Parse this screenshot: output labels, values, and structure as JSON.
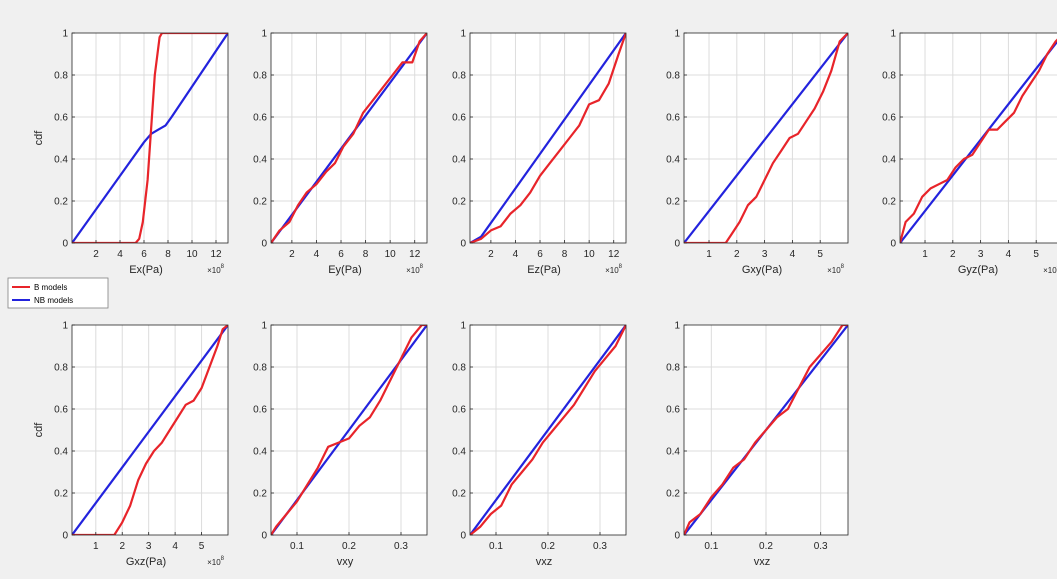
{
  "figure": {
    "background": "#f0f0f0",
    "axes_color": "#262626",
    "grid_color": "#dcdcdc"
  },
  "legend": {
    "placement": "left, between the two rows",
    "entries": [
      {
        "label": "B models",
        "color": "#e8242a"
      },
      {
        "label": "NB models",
        "color": "#2323dd"
      }
    ]
  },
  "chart_data": [
    {
      "type": "line",
      "xlabel": "Ex(Pa)",
      "ylabel": "cdf",
      "exponent": "10",
      "xlim": [
        0,
        13
      ],
      "ylim": [
        0,
        1
      ],
      "xticks": [
        2,
        4,
        6,
        8,
        10,
        12
      ],
      "xticklabels": [
        "2",
        "4",
        "6",
        "8",
        "10",
        "12"
      ],
      "yticks": [
        0,
        0.2,
        0.4,
        0.6,
        0.8,
        1
      ],
      "yticklabels": [
        "0",
        "0.2",
        "0.4",
        "0.6",
        "0.8",
        "1"
      ],
      "series": [
        {
          "name": "B models",
          "color": "#e8242a",
          "x": [
            0,
            5.3,
            5.6,
            5.9,
            6.3,
            6.6,
            6.9,
            7.3,
            7.5,
            8,
            13
          ],
          "y": [
            0,
            0,
            0.02,
            0.1,
            0.3,
            0.55,
            0.8,
            0.98,
            1,
            1,
            1
          ]
        },
        {
          "name": "NB models",
          "color": "#2323dd",
          "x": [
            0,
            6,
            6.6,
            7.2,
            7.8,
            8.3,
            13
          ],
          "y": [
            0,
            0.48,
            0.52,
            0.54,
            0.56,
            0.6,
            1
          ]
        }
      ]
    },
    {
      "type": "line",
      "xlabel": "Ey(Pa)",
      "ylabel": "",
      "exponent": "10",
      "xlim": [
        0.3,
        13
      ],
      "ylim": [
        0,
        1
      ],
      "xticks": [
        2,
        4,
        6,
        8,
        10,
        12
      ],
      "xticklabels": [
        "2",
        "4",
        "6",
        "8",
        "10",
        "12"
      ],
      "yticks": [
        0,
        0.2,
        0.4,
        0.6,
        0.8,
        1
      ],
      "yticklabels": [
        "0",
        "0.2",
        "0.4",
        "0.6",
        "0.8",
        "1"
      ],
      "series": [
        {
          "name": "B models",
          "color": "#e8242a",
          "x": [
            0.3,
            1,
            1.8,
            2.5,
            3.2,
            4,
            4.8,
            5.5,
            6.2,
            7,
            7.8,
            8.6,
            9.4,
            10.2,
            11,
            11.8,
            12.4,
            13
          ],
          "y": [
            0,
            0.06,
            0.1,
            0.18,
            0.24,
            0.28,
            0.34,
            0.38,
            0.46,
            0.52,
            0.62,
            0.68,
            0.74,
            0.8,
            0.86,
            0.86,
            0.96,
            1
          ]
        },
        {
          "name": "NB models",
          "color": "#2323dd",
          "x": [
            0.3,
            13
          ],
          "y": [
            0,
            1
          ]
        }
      ]
    },
    {
      "type": "line",
      "xlabel": "Ez(Pa)",
      "ylabel": "",
      "exponent": "10",
      "xlim": [
        0.3,
        13
      ],
      "ylim": [
        0,
        1
      ],
      "xticks": [
        2,
        4,
        6,
        8,
        10,
        12
      ],
      "xticklabels": [
        "2",
        "4",
        "6",
        "8",
        "10",
        "12"
      ],
      "yticks": [
        0,
        0.2,
        0.4,
        0.6,
        0.8,
        1
      ],
      "yticklabels": [
        "0",
        "0.2",
        "0.4",
        "0.6",
        "0.8",
        "1"
      ],
      "series": [
        {
          "name": "B models",
          "color": "#e8242a",
          "x": [
            0.3,
            1.2,
            2,
            2.8,
            3.6,
            4.4,
            5.2,
            6,
            6.8,
            7.6,
            8.4,
            9.2,
            10,
            10.8,
            11.6,
            12.4,
            13
          ],
          "y": [
            0,
            0.02,
            0.06,
            0.08,
            0.14,
            0.18,
            0.24,
            0.32,
            0.38,
            0.44,
            0.5,
            0.56,
            0.66,
            0.68,
            0.76,
            0.9,
            1
          ]
        },
        {
          "name": "NB models",
          "color": "#2323dd",
          "x": [
            0.3,
            1.2,
            13
          ],
          "y": [
            0,
            0.03,
            1
          ]
        }
      ]
    },
    {
      "type": "line",
      "xlabel": "Gxy(Pa)",
      "ylabel": "",
      "exponent": "10",
      "xlim": [
        0.1,
        6
      ],
      "ylim": [
        0,
        1
      ],
      "xticks": [
        1,
        2,
        3,
        4,
        5
      ],
      "xticklabels": [
        "1",
        "2",
        "3",
        "4",
        "5"
      ],
      "yticks": [
        0,
        0.2,
        0.4,
        0.6,
        0.8,
        1
      ],
      "yticklabels": [
        "0",
        "0.2",
        "0.4",
        "0.6",
        "0.8",
        "1"
      ],
      "series": [
        {
          "name": "B models",
          "color": "#e8242a",
          "x": [
            0.1,
            1.6,
            1.8,
            2.1,
            2.4,
            2.7,
            3,
            3.3,
            3.6,
            3.9,
            4.2,
            4.5,
            4.8,
            5.1,
            5.4,
            5.7,
            6
          ],
          "y": [
            0,
            0,
            0.04,
            0.1,
            0.18,
            0.22,
            0.3,
            0.38,
            0.44,
            0.5,
            0.52,
            0.58,
            0.64,
            0.72,
            0.82,
            0.96,
            1
          ]
        },
        {
          "name": "NB models",
          "color": "#2323dd",
          "x": [
            0.1,
            6
          ],
          "y": [
            0,
            1
          ]
        }
      ]
    },
    {
      "type": "line",
      "xlabel": "Gyz(Pa)",
      "ylabel": "",
      "exponent": "10",
      "xlim": [
        0.1,
        6
      ],
      "ylim": [
        0,
        1
      ],
      "xticks": [
        1,
        2,
        3,
        4,
        5
      ],
      "xticklabels": [
        "1",
        "2",
        "3",
        "4",
        "5"
      ],
      "yticks": [
        0,
        0.2,
        0.4,
        0.6,
        0.8,
        1
      ],
      "yticklabels": [
        "0",
        "0.2",
        "0.4",
        "0.6",
        "0.8",
        "1"
      ],
      "series": [
        {
          "name": "B models",
          "color": "#e8242a",
          "x": [
            0.1,
            0.3,
            0.6,
            0.9,
            1.2,
            1.5,
            1.8,
            2.1,
            2.4,
            2.7,
            3,
            3.3,
            3.6,
            3.9,
            4.2,
            4.5,
            4.8,
            5.1,
            5.4,
            5.7,
            6
          ],
          "y": [
            0,
            0.1,
            0.14,
            0.22,
            0.26,
            0.28,
            0.3,
            0.36,
            0.4,
            0.42,
            0.48,
            0.54,
            0.54,
            0.58,
            0.62,
            0.7,
            0.76,
            0.82,
            0.9,
            0.96,
            1
          ]
        },
        {
          "name": "NB models",
          "color": "#2323dd",
          "x": [
            0.1,
            6
          ],
          "y": [
            0,
            1
          ]
        }
      ]
    },
    {
      "type": "line",
      "xlabel": "Gxz(Pa)",
      "ylabel": "cdf",
      "exponent": "10",
      "xlim": [
        0.1,
        6
      ],
      "ylim": [
        0,
        1
      ],
      "xticks": [
        1,
        2,
        3,
        4,
        5
      ],
      "xticklabels": [
        "1",
        "2",
        "3",
        "4",
        "5"
      ],
      "yticks": [
        0,
        0.2,
        0.4,
        0.6,
        0.8,
        1
      ],
      "yticklabels": [
        "0",
        "0.2",
        "0.4",
        "0.6",
        "0.8",
        "1"
      ],
      "series": [
        {
          "name": "B models",
          "color": "#e8242a",
          "x": [
            0.1,
            1.7,
            2,
            2.3,
            2.6,
            2.9,
            3.2,
            3.5,
            3.8,
            4.1,
            4.4,
            4.7,
            5,
            5.3,
            5.6,
            5.8,
            6
          ],
          "y": [
            0,
            0,
            0.06,
            0.14,
            0.26,
            0.34,
            0.4,
            0.44,
            0.5,
            0.56,
            0.62,
            0.64,
            0.7,
            0.8,
            0.9,
            0.98,
            1
          ]
        },
        {
          "name": "NB models",
          "color": "#2323dd",
          "x": [
            0.1,
            6
          ],
          "y": [
            0,
            1
          ]
        }
      ]
    },
    {
      "type": "line",
      "xlabel": "vxy",
      "ylabel": "",
      "exponent": "",
      "xlim": [
        0.05,
        0.35
      ],
      "ylim": [
        0,
        1
      ],
      "xticks": [
        0.1,
        0.2,
        0.3
      ],
      "xticklabels": [
        "0.1",
        "0.2",
        "0.3"
      ],
      "yticks": [
        0,
        0.2,
        0.4,
        0.6,
        0.8,
        1
      ],
      "yticklabels": [
        "0",
        "0.2",
        "0.4",
        "0.6",
        "0.8",
        "1"
      ],
      "series": [
        {
          "name": "B models",
          "color": "#e8242a",
          "x": [
            0.05,
            0.06,
            0.08,
            0.1,
            0.12,
            0.14,
            0.16,
            0.18,
            0.2,
            0.22,
            0.24,
            0.26,
            0.28,
            0.3,
            0.32,
            0.34,
            0.35
          ],
          "y": [
            0,
            0.04,
            0.1,
            0.16,
            0.24,
            0.32,
            0.42,
            0.44,
            0.46,
            0.52,
            0.56,
            0.64,
            0.74,
            0.84,
            0.94,
            1,
            1
          ]
        },
        {
          "name": "NB models",
          "color": "#2323dd",
          "x": [
            0.05,
            0.35
          ],
          "y": [
            0,
            1
          ]
        }
      ]
    },
    {
      "type": "line",
      "xlabel": "vxz",
      "ylabel": "",
      "exponent": "",
      "xlim": [
        0.05,
        0.35
      ],
      "ylim": [
        0,
        1
      ],
      "xticks": [
        0.1,
        0.2,
        0.3
      ],
      "xticklabels": [
        "0.1",
        "0.2",
        "0.3"
      ],
      "yticks": [
        0,
        0.2,
        0.4,
        0.6,
        0.8,
        1
      ],
      "yticklabels": [
        "0",
        "0.2",
        "0.4",
        "0.6",
        "0.8",
        "1"
      ],
      "series": [
        {
          "name": "B models",
          "color": "#e8242a",
          "x": [
            0.05,
            0.07,
            0.09,
            0.11,
            0.13,
            0.15,
            0.17,
            0.19,
            0.21,
            0.23,
            0.25,
            0.27,
            0.29,
            0.31,
            0.33,
            0.35
          ],
          "y": [
            0,
            0.04,
            0.1,
            0.14,
            0.24,
            0.3,
            0.36,
            0.44,
            0.5,
            0.56,
            0.62,
            0.7,
            0.78,
            0.84,
            0.9,
            1
          ]
        },
        {
          "name": "NB models",
          "color": "#2323dd",
          "x": [
            0.05,
            0.35
          ],
          "y": [
            0,
            1
          ]
        }
      ]
    },
    {
      "type": "line",
      "xlabel": "vxz",
      "ylabel": "",
      "exponent": "",
      "xlim": [
        0.05,
        0.35
      ],
      "ylim": [
        0,
        1
      ],
      "xticks": [
        0.1,
        0.2,
        0.3
      ],
      "xticklabels": [
        "0.1",
        "0.2",
        "0.3"
      ],
      "yticks": [
        0,
        0.2,
        0.4,
        0.6,
        0.8,
        1
      ],
      "yticklabels": [
        "0",
        "0.2",
        "0.4",
        "0.6",
        "0.8",
        "1"
      ],
      "series": [
        {
          "name": "B models",
          "color": "#e8242a",
          "x": [
            0.05,
            0.06,
            0.08,
            0.1,
            0.12,
            0.14,
            0.16,
            0.18,
            0.2,
            0.22,
            0.24,
            0.26,
            0.28,
            0.3,
            0.32,
            0.34,
            0.35
          ],
          "y": [
            0,
            0.06,
            0.1,
            0.18,
            0.24,
            0.32,
            0.36,
            0.44,
            0.5,
            0.56,
            0.6,
            0.7,
            0.8,
            0.86,
            0.92,
            1,
            1
          ]
        },
        {
          "name": "NB models",
          "color": "#2323dd",
          "x": [
            0.05,
            0.35
          ],
          "y": [
            0,
            1
          ]
        }
      ]
    }
  ]
}
